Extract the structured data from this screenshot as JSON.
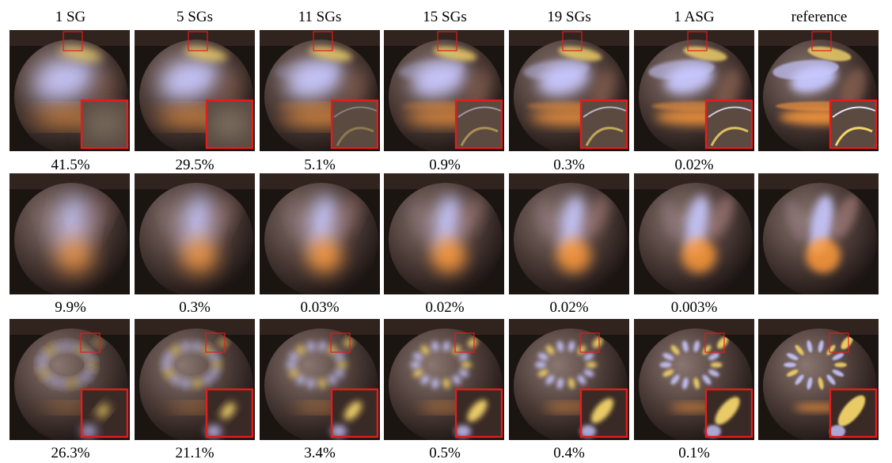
{
  "figure": {
    "columns": [
      {
        "label": "1 SG",
        "key": "sg1"
      },
      {
        "label": "5 SGs",
        "key": "sg5"
      },
      {
        "label": "11 SGs",
        "key": "sg11"
      },
      {
        "label": "15 SGs",
        "key": "sg15"
      },
      {
        "label": "19 SGs",
        "key": "sg19"
      },
      {
        "label": "1 ASG",
        "key": "asg1"
      },
      {
        "label": "reference",
        "key": "ref"
      }
    ],
    "rows": [
      {
        "key": "row1",
        "has_inset": true,
        "errors": [
          "41.5%",
          "29.5%",
          "5.1%",
          "0.9%",
          "0.3%",
          "0.02%",
          ""
        ]
      },
      {
        "key": "row2",
        "has_inset": false,
        "errors": [
          "9.9%",
          "0.3%",
          "0.03%",
          "0.02%",
          "0.02%",
          "0.003%",
          ""
        ]
      },
      {
        "key": "row3",
        "has_inset": true,
        "errors": [
          "26.3%",
          "21.1%",
          "3.4%",
          "0.5%",
          "0.4%",
          "0.1%",
          ""
        ]
      }
    ],
    "colors": {
      "inset_frame": "#e31c1c",
      "background": "#1b1512",
      "highlight_blue": "#c8c8ff",
      "highlight_orange": "#ff9a3a",
      "highlight_yellow": "#f3d46b"
    }
  }
}
